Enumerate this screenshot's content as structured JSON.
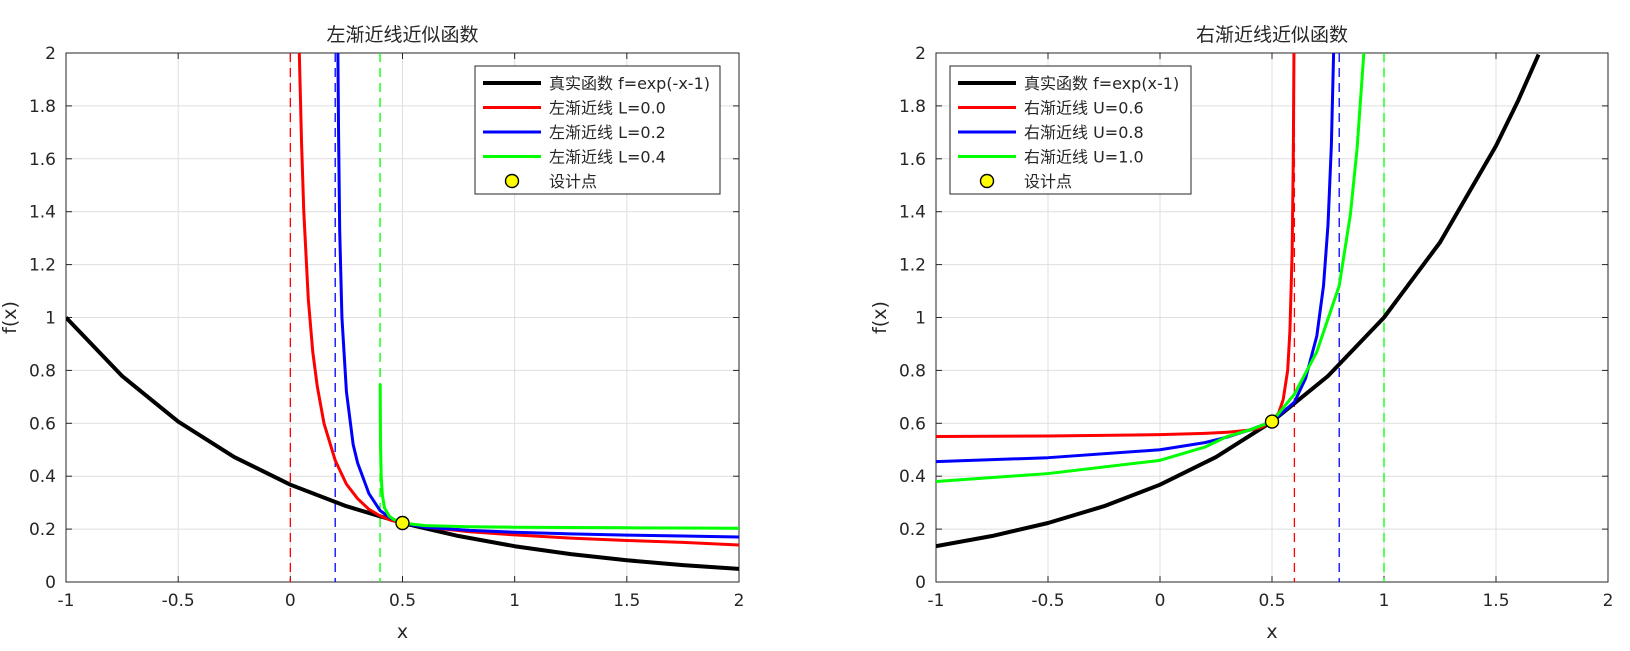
{
  "chart_data": [
    {
      "type": "line",
      "title": "左渐近线近似函数",
      "xlabel": "x",
      "ylabel": "f(x)",
      "xlim": [
        -1,
        2
      ],
      "ylim": [
        0,
        2
      ],
      "xticks": [
        "-1",
        "-0.5",
        "0",
        "0.5",
        "1",
        "1.5",
        "2"
      ],
      "yticks": [
        "0",
        "0.2",
        "0.4",
        "0.6",
        "0.8",
        "1",
        "1.2",
        "1.4",
        "1.6",
        "1.8",
        "2"
      ],
      "grid": true,
      "legend_position": "top-right",
      "design_point": {
        "x": 0.5,
        "y": 0.2231
      },
      "asymptotes": [
        {
          "x": 0.0,
          "color": "#ff0000"
        },
        {
          "x": 0.2,
          "color": "#0000ff"
        },
        {
          "x": 0.4,
          "color": "#00ff00"
        }
      ],
      "series": [
        {
          "name": "真实函数 f=exp(-x-1)",
          "color": "#000000",
          "x": [
            -1,
            -0.75,
            -0.5,
            -0.25,
            0,
            0.25,
            0.5,
            0.75,
            1,
            1.25,
            1.5,
            1.75,
            2
          ],
          "y": [
            1.0,
            0.7788,
            0.6065,
            0.4724,
            0.3679,
            0.2865,
            0.2231,
            0.1738,
            0.1353,
            0.1054,
            0.0821,
            0.0639,
            0.0498
          ]
        },
        {
          "name": "左渐近线 L=0.0",
          "color": "#ff0000",
          "x": [
            0.04,
            0.05,
            0.06,
            0.08,
            0.1,
            0.12,
            0.15,
            0.2,
            0.25,
            0.3,
            0.35,
            0.4,
            0.45,
            0.5,
            0.6,
            0.8,
            1.0,
            1.25,
            1.5,
            1.75,
            2.0
          ],
          "y": [
            2.0,
            1.66,
            1.4,
            1.07,
            0.87,
            0.74,
            0.6,
            0.46,
            0.37,
            0.315,
            0.275,
            0.25,
            0.233,
            0.2231,
            0.208,
            0.19,
            0.178,
            0.166,
            0.157,
            0.15,
            0.14
          ]
        },
        {
          "name": "左渐近线 L=0.2",
          "color": "#0000ff",
          "x": [
            0.212,
            0.215,
            0.22,
            0.23,
            0.25,
            0.28,
            0.3,
            0.35,
            0.4,
            0.45,
            0.5,
            0.6,
            0.8,
            1.0,
            1.25,
            1.5,
            1.75,
            2.0
          ],
          "y": [
            2.0,
            1.7,
            1.33,
            1.0,
            0.72,
            0.52,
            0.45,
            0.335,
            0.27,
            0.24,
            0.2231,
            0.207,
            0.195,
            0.188,
            0.182,
            0.177,
            0.174,
            0.17
          ]
        },
        {
          "name": "左渐近线 L=0.4",
          "color": "#00ff00",
          "x": [
            0.4005,
            0.402,
            0.405,
            0.41,
            0.42,
            0.44,
            0.46,
            0.5,
            0.6,
            0.8,
            1.0,
            1.25,
            1.5,
            1.75,
            2.0
          ],
          "y": [
            0.75,
            0.52,
            0.4,
            0.33,
            0.28,
            0.25,
            0.237,
            0.2231,
            0.213,
            0.209,
            0.207,
            0.206,
            0.205,
            0.204,
            0.203
          ]
        }
      ]
    },
    {
      "type": "line",
      "title": "右渐近线近似函数",
      "xlabel": "x",
      "ylabel": "f(x)",
      "xlim": [
        -1,
        2
      ],
      "ylim": [
        0,
        2
      ],
      "xticks": [
        "-1",
        "-0.5",
        "0",
        "0.5",
        "1",
        "1.5",
        "2"
      ],
      "yticks": [
        "0",
        "0.2",
        "0.4",
        "0.6",
        "0.8",
        "1",
        "1.2",
        "1.4",
        "1.6",
        "1.8",
        "2"
      ],
      "grid": true,
      "legend_position": "top-left",
      "design_point": {
        "x": 0.5,
        "y": 0.6065
      },
      "asymptotes": [
        {
          "x": 0.6,
          "color": "#ff0000"
        },
        {
          "x": 0.8,
          "color": "#0000ff"
        },
        {
          "x": 1.0,
          "color": "#00ff00"
        }
      ],
      "series": [
        {
          "name": "真实函数 f=exp(x-1)",
          "color": "#000000",
          "x": [
            -1,
            -0.75,
            -0.5,
            -0.25,
            0,
            0.25,
            0.5,
            0.75,
            1,
            1.25,
            1.5,
            1.6,
            1.69
          ],
          "y": [
            0.1353,
            0.1738,
            0.2231,
            0.2865,
            0.3679,
            0.4724,
            0.6065,
            0.7788,
            1.0,
            1.284,
            1.6487,
            1.822,
            1.994
          ]
        },
        {
          "name": "右渐近线 U=0.6",
          "color": "#ff0000",
          "x": [
            -1,
            -0.5,
            0,
            0.2,
            0.3,
            0.4,
            0.45,
            0.5,
            0.53,
            0.55,
            0.57,
            0.58,
            0.59,
            0.595,
            0.598
          ],
          "y": [
            0.55,
            0.552,
            0.557,
            0.562,
            0.566,
            0.574,
            0.584,
            0.6065,
            0.64,
            0.69,
            0.8,
            0.95,
            1.25,
            1.6,
            2.0
          ]
        },
        {
          "name": "右渐近线 U=0.8",
          "color": "#0000ff",
          "x": [
            -1,
            -0.5,
            0,
            0.2,
            0.3,
            0.4,
            0.5,
            0.6,
            0.65,
            0.7,
            0.73,
            0.75,
            0.765,
            0.775
          ],
          "y": [
            0.455,
            0.47,
            0.5,
            0.527,
            0.548,
            0.575,
            0.6065,
            0.68,
            0.77,
            0.93,
            1.12,
            1.35,
            1.65,
            2.0
          ]
        },
        {
          "name": "右渐近线 U=1.0",
          "color": "#00ff00",
          "x": [
            -1,
            -0.5,
            0,
            0.2,
            0.3,
            0.4,
            0.5,
            0.6,
            0.7,
            0.8,
            0.85,
            0.88,
            0.91
          ],
          "y": [
            0.38,
            0.41,
            0.46,
            0.51,
            0.55,
            0.575,
            0.6065,
            0.71,
            0.87,
            1.12,
            1.39,
            1.64,
            2.0
          ]
        }
      ]
    }
  ],
  "legend_marker_label": "设计点",
  "design_point_color": "#ffff00"
}
